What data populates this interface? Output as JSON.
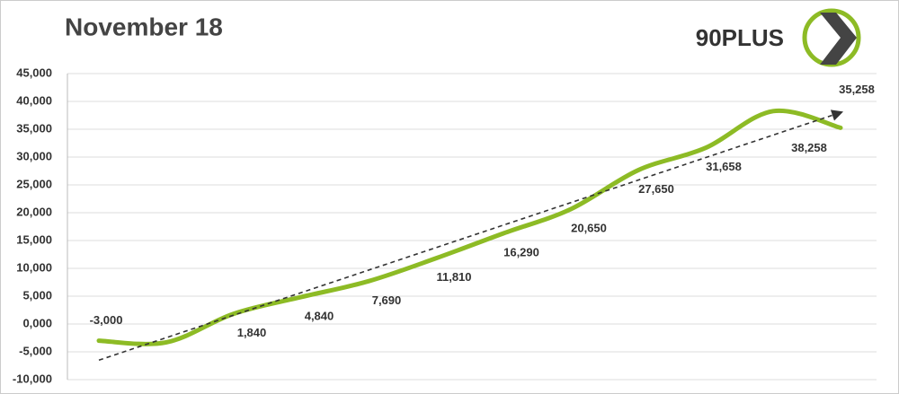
{
  "chart_data": {
    "type": "line",
    "title": "November 18",
    "logo": "90PLUS",
    "values": [
      -3000,
      -3300,
      1840,
      4840,
      7690,
      11810,
      16290,
      20650,
      27650,
      31658,
      38258,
      35258
    ],
    "value_labels": [
      "-3,000",
      null,
      "1,840",
      "4,840",
      "7,690",
      "11,810",
      "16,290",
      "20,650",
      "27,650",
      "31,658",
      "38,258",
      "35,258"
    ],
    "color": "#8dbb25",
    "trendline": [
      -6500,
      38000
    ],
    "ylim": [
      -10000,
      45000
    ],
    "yticks": [
      {
        "value": -10000,
        "label": "-10,000"
      },
      {
        "value": -5000,
        "label": "-5,000"
      },
      {
        "value": 0,
        "label": "0,000"
      },
      {
        "value": 5000,
        "label": "5,000"
      },
      {
        "value": 10000,
        "label": "10,000"
      },
      {
        "value": 15000,
        "label": "15,000"
      },
      {
        "value": 20000,
        "label": "20,000"
      },
      {
        "value": 25000,
        "label": "25,000"
      },
      {
        "value": 30000,
        "label": "30,000"
      },
      {
        "value": 35000,
        "label": "35,000"
      },
      {
        "value": 40000,
        "label": "40,000"
      },
      {
        "value": 45000,
        "label": "45,000"
      }
    ],
    "grid": true
  }
}
